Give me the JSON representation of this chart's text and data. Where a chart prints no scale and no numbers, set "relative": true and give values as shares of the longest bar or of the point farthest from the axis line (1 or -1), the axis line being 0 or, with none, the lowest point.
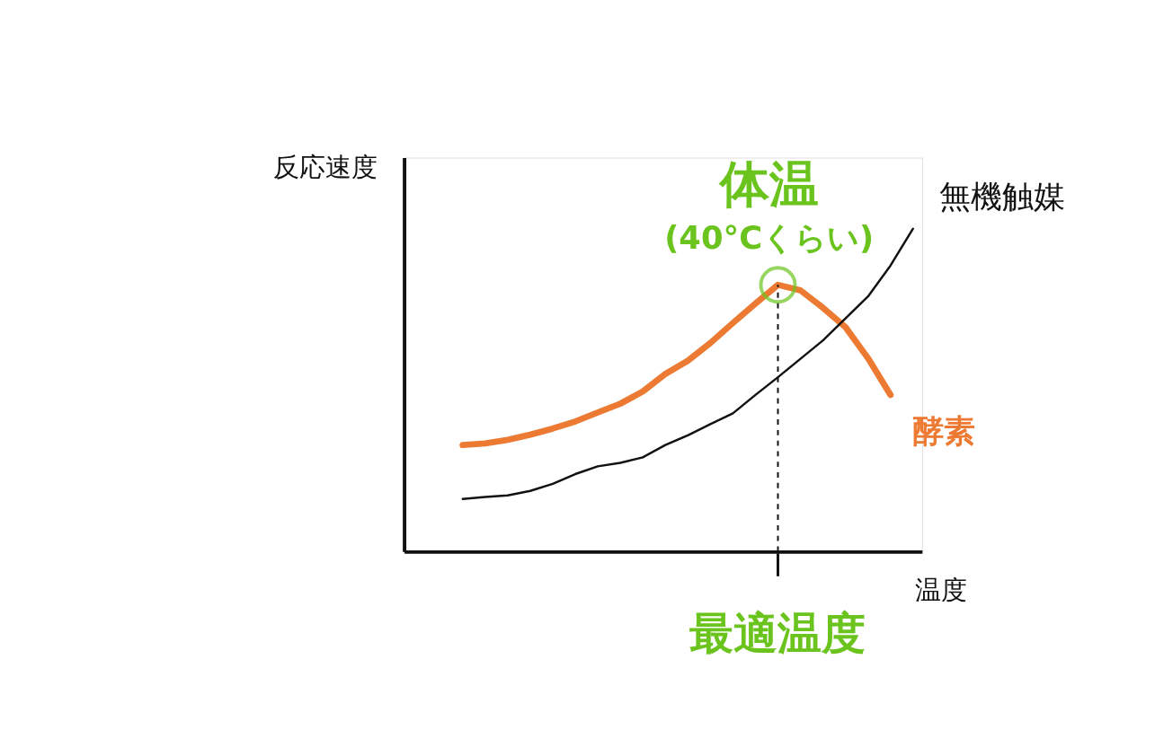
{
  "chart_data": {
    "type": "line",
    "relative": true,
    "xlabel": "温度",
    "ylabel": "反応速度",
    "tick_labels": false,
    "grid": false,
    "categories": [
      null,
      null,
      null,
      null,
      null,
      null,
      null,
      null,
      null,
      null,
      null,
      null,
      null,
      null,
      null,
      null,
      null,
      null,
      null,
      null,
      null
    ],
    "series": [
      {
        "name": "酵素",
        "color": "#ec7a32",
        "values": [
          0.33,
          0.335,
          0.346,
          0.362,
          0.381,
          0.403,
          0.431,
          0.458,
          0.496,
          0.55,
          0.591,
          0.646,
          0.708,
          0.768,
          0.826,
          0.809,
          0.755,
          0.695,
          0.599,
          0.485,
          null
        ]
      },
      {
        "name": "無機触媒",
        "color": "#111111",
        "values": [
          0.163,
          0.169,
          0.174,
          0.188,
          0.21,
          0.24,
          0.264,
          0.275,
          0.292,
          0.33,
          0.36,
          0.395,
          0.428,
          0.485,
          0.54,
          0.597,
          0.654,
          0.722,
          0.79,
          0.886,
          1
        ]
      }
    ],
    "annotations": [
      "体温\n(40°Cくらい)",
      "最適温度"
    ]
  }
}
